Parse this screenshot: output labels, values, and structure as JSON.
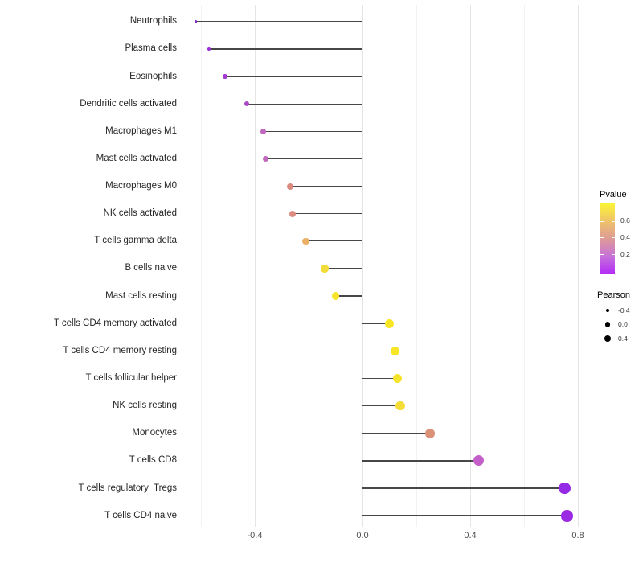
{
  "chart_data": {
    "type": "lollipop",
    "title": "",
    "xlabel": "",
    "ylabel": "",
    "x_axis": {
      "ticks": [
        {
          "value": -0.4,
          "label": "-0.4"
        },
        {
          "value": 0.0,
          "label": "0.0"
        },
        {
          "value": 0.4,
          "label": "0.4"
        },
        {
          "value": 0.8,
          "label": "0.8"
        }
      ],
      "major_gridlines": [
        -0.4,
        0.0,
        0.4,
        0.8
      ],
      "minor_gridlines": [
        -0.6,
        -0.2,
        0.2,
        0.6
      ],
      "range": [
        -0.65,
        1.02
      ]
    },
    "rows": [
      {
        "label": "Neutrophils",
        "pearson": -0.62,
        "pvalue_approx": 0.005,
        "color": "#7d2ac9"
      },
      {
        "label": "Plasma cells",
        "pearson": -0.57,
        "pvalue_approx": 0.03,
        "color": "#9a30d8"
      },
      {
        "label": "Eosinophils",
        "pearson": -0.51,
        "pvalue_approx": 0.06,
        "color": "#a23cce"
      },
      {
        "label": "Dendritic cells activated",
        "pearson": -0.43,
        "pvalue_approx": 0.09,
        "color": "#ac4ac6"
      },
      {
        "label": "Macrophages M1",
        "pearson": -0.37,
        "pvalue_approx": 0.15,
        "color": "#c167bf"
      },
      {
        "label": "Mast cells activated",
        "pearson": -0.36,
        "pvalue_approx": 0.15,
        "color": "#c268be"
      },
      {
        "label": "Macrophages M0",
        "pearson": -0.27,
        "pvalue_approx": 0.35,
        "color": "#dc8a80"
      },
      {
        "label": "NK cells activated",
        "pearson": -0.26,
        "pvalue_approx": 0.35,
        "color": "#dd8c82"
      },
      {
        "label": "T cells gamma delta",
        "pearson": -0.21,
        "pvalue_approx": 0.52,
        "color": "#eab166"
      },
      {
        "label": "B cells naive",
        "pearson": -0.14,
        "pvalue_approx": 0.68,
        "color": "#f2dc3d"
      },
      {
        "label": "Mast cells resting",
        "pearson": -0.1,
        "pvalue_approx": 0.74,
        "color": "#f6e42d"
      },
      {
        "label": "T cells CD4 memory activated",
        "pearson": 0.1,
        "pvalue_approx": 0.78,
        "color": "#f8e625"
      },
      {
        "label": "T cells CD4 memory resting",
        "pearson": 0.12,
        "pvalue_approx": 0.77,
        "color": "#f8e528"
      },
      {
        "label": "T cells follicular helper",
        "pearson": 0.13,
        "pvalue_approx": 0.75,
        "color": "#f6e32c"
      },
      {
        "label": "NK cells resting",
        "pearson": 0.14,
        "pvalue_approx": 0.72,
        "color": "#f4de36"
      },
      {
        "label": "Monocytes",
        "pearson": 0.25,
        "pvalue_approx": 0.37,
        "color": "#db9078"
      },
      {
        "label": "T cells CD8",
        "pearson": 0.43,
        "pvalue_approx": 0.13,
        "color": "#c45fc9"
      },
      {
        "label": "T cells regulatory  Tregs",
        "pearson": 0.75,
        "pvalue_approx": 0.008,
        "color": "#9529e5"
      },
      {
        "label": "T cells CD4 naive",
        "pearson": 0.76,
        "pvalue_approx": 0.005,
        "color": "#9a2be2"
      }
    ],
    "legend": {
      "pvalue": {
        "title": "Pvalue",
        "ticks": [
          {
            "value": 0.6,
            "label": "0.6"
          },
          {
            "value": 0.4,
            "label": "0.4"
          },
          {
            "value": 0.2,
            "label": "0.2"
          }
        ],
        "bar_value_top": 0.82,
        "bar_value_bottom": -0.04,
        "gradient_stops": [
          "#fbf733",
          "#efc468",
          "#de9c95",
          "#c671d9",
          "#b32bf7"
        ]
      },
      "pearson": {
        "title": "Pearson",
        "entries": [
          {
            "value": -0.4,
            "label": "-0.4"
          },
          {
            "value": 0.0,
            "label": "0.0"
          },
          {
            "value": 0.4,
            "label": "0.4"
          }
        ]
      }
    },
    "style": {
      "stem_color": "#474747",
      "axis_text_color": "#4d4d4d",
      "label_text_color": "#262626",
      "background": "#ffffff"
    }
  }
}
